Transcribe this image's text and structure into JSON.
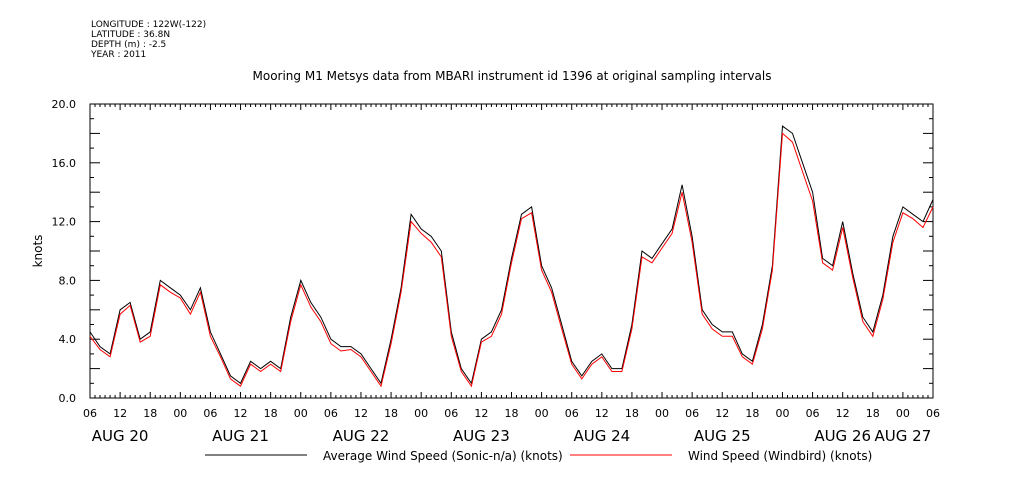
{
  "header": {
    "longitude": "LONGITUDE : 122W(-122)",
    "latitude": "LATITUDE : 36.8N",
    "depth": "DEPTH (m) : -2.5",
    "year": "YEAR : 2011"
  },
  "chart_data": {
    "type": "line",
    "title": "Mooring M1 Metsys data from MBARI instrument id 1396 at original sampling intervals",
    "ylabel": "knots",
    "xlabel": "",
    "ylim": [
      0,
      20
    ],
    "y_ticks": [
      "0.0",
      "4.0",
      "8.0",
      "12.0",
      "16.0",
      "20.0"
    ],
    "x_hour_ticks": [
      "06",
      "12",
      "18",
      "00",
      "06",
      "12",
      "18",
      "00",
      "06",
      "12",
      "18",
      "00",
      "06",
      "12",
      "18",
      "00",
      "06",
      "12",
      "18",
      "00",
      "06",
      "12",
      "18",
      "00",
      "06",
      "12",
      "18",
      "00",
      "06"
    ],
    "x_range_hours": [
      6,
      174
    ],
    "x_day_labels": [
      {
        "label": "AUG 20",
        "hour": 12
      },
      {
        "label": "AUG 21",
        "hour": 36
      },
      {
        "label": "AUG 22",
        "hour": 60
      },
      {
        "label": "AUG 23",
        "hour": 84
      },
      {
        "label": "AUG 24",
        "hour": 108
      },
      {
        "label": "AUG 25",
        "hour": 132
      },
      {
        "label": "AUG 26",
        "hour": 156
      },
      {
        "label": "AUG 27",
        "hour": 168
      }
    ],
    "grid": false,
    "legend_position": "bottom",
    "series": [
      {
        "name": "Average Wind Speed (Sonic-n/a) (knots)",
        "color": "#000000",
        "x": [
          6,
          8,
          10,
          12,
          14,
          16,
          18,
          20,
          22,
          24,
          26,
          28,
          30,
          32,
          34,
          36,
          38,
          40,
          42,
          44,
          46,
          48,
          50,
          52,
          54,
          56,
          58,
          60,
          62,
          64,
          66,
          68,
          70,
          72,
          74,
          76,
          78,
          80,
          82,
          84,
          86,
          88,
          90,
          92,
          94,
          96,
          98,
          100,
          102,
          104,
          106,
          108,
          110,
          112,
          114,
          116,
          118,
          120,
          122,
          124,
          126,
          128,
          130,
          132,
          134,
          136,
          138,
          140,
          142,
          144,
          146,
          148,
          150,
          152,
          154,
          156,
          158,
          160,
          162,
          164,
          166,
          168,
          170,
          172,
          174
        ],
        "y": [
          4.5,
          3.5,
          3.0,
          6.0,
          6.5,
          4.0,
          4.5,
          8.0,
          7.5,
          7.0,
          6.0,
          7.5,
          4.5,
          3.0,
          1.5,
          1.0,
          2.5,
          2.0,
          2.5,
          2.0,
          5.5,
          8.0,
          6.5,
          5.5,
          4.0,
          3.5,
          3.5,
          3.0,
          2.0,
          1.0,
          4.0,
          7.5,
          12.5,
          11.5,
          11.0,
          10.0,
          4.5,
          2.0,
          1.0,
          4.0,
          4.5,
          6.0,
          9.5,
          12.5,
          13.0,
          9.0,
          7.5,
          5.0,
          2.5,
          1.5,
          2.5,
          3.0,
          2.0,
          2.0,
          5.0,
          10.0,
          9.5,
          10.5,
          11.5,
          14.5,
          11.0,
          6.0,
          5.0,
          4.5,
          4.5,
          3.0,
          2.5,
          5.0,
          9.0,
          18.5,
          18.0,
          16.0,
          14.0,
          9.5,
          9.0,
          12.0,
          8.5,
          5.5,
          4.5,
          7.0,
          11.0,
          13.0,
          12.5,
          12.0,
          13.5
        ]
      },
      {
        "name": "Wind Speed (Windbird) (knots)",
        "color": "#ff0000",
        "x": [
          6,
          8,
          10,
          12,
          14,
          16,
          18,
          20,
          22,
          24,
          26,
          28,
          30,
          32,
          34,
          36,
          38,
          40,
          42,
          44,
          46,
          48,
          50,
          52,
          54,
          56,
          58,
          60,
          62,
          64,
          66,
          68,
          70,
          72,
          74,
          76,
          78,
          80,
          82,
          84,
          86,
          88,
          90,
          92,
          94,
          96,
          98,
          100,
          102,
          104,
          106,
          108,
          110,
          112,
          114,
          116,
          118,
          120,
          122,
          124,
          126,
          128,
          130,
          132,
          134,
          136,
          138,
          140,
          142,
          144,
          146,
          148,
          150,
          152,
          154,
          156,
          158,
          160,
          162,
          164,
          166,
          168,
          170,
          172,
          174
        ],
        "y": [
          4.2,
          3.3,
          2.8,
          5.7,
          6.3,
          3.8,
          4.2,
          7.7,
          7.2,
          6.8,
          5.7,
          7.2,
          4.2,
          2.8,
          1.3,
          0.8,
          2.3,
          1.8,
          2.3,
          1.8,
          5.2,
          7.7,
          6.2,
          5.2,
          3.7,
          3.2,
          3.3,
          2.8,
          1.8,
          0.8,
          3.7,
          7.2,
          12.0,
          11.2,
          10.6,
          9.6,
          4.2,
          1.8,
          0.8,
          3.8,
          4.2,
          5.7,
          9.2,
          12.2,
          12.6,
          8.7,
          7.2,
          4.7,
          2.3,
          1.3,
          2.3,
          2.8,
          1.8,
          1.8,
          4.7,
          9.6,
          9.2,
          10.2,
          11.2,
          14.0,
          10.6,
          5.7,
          4.7,
          4.2,
          4.2,
          2.8,
          2.3,
          4.7,
          8.7,
          18.0,
          17.4,
          15.4,
          13.4,
          9.2,
          8.7,
          11.6,
          8.2,
          5.2,
          4.2,
          6.7,
          10.6,
          12.6,
          12.2,
          11.6,
          13.0
        ]
      }
    ]
  }
}
